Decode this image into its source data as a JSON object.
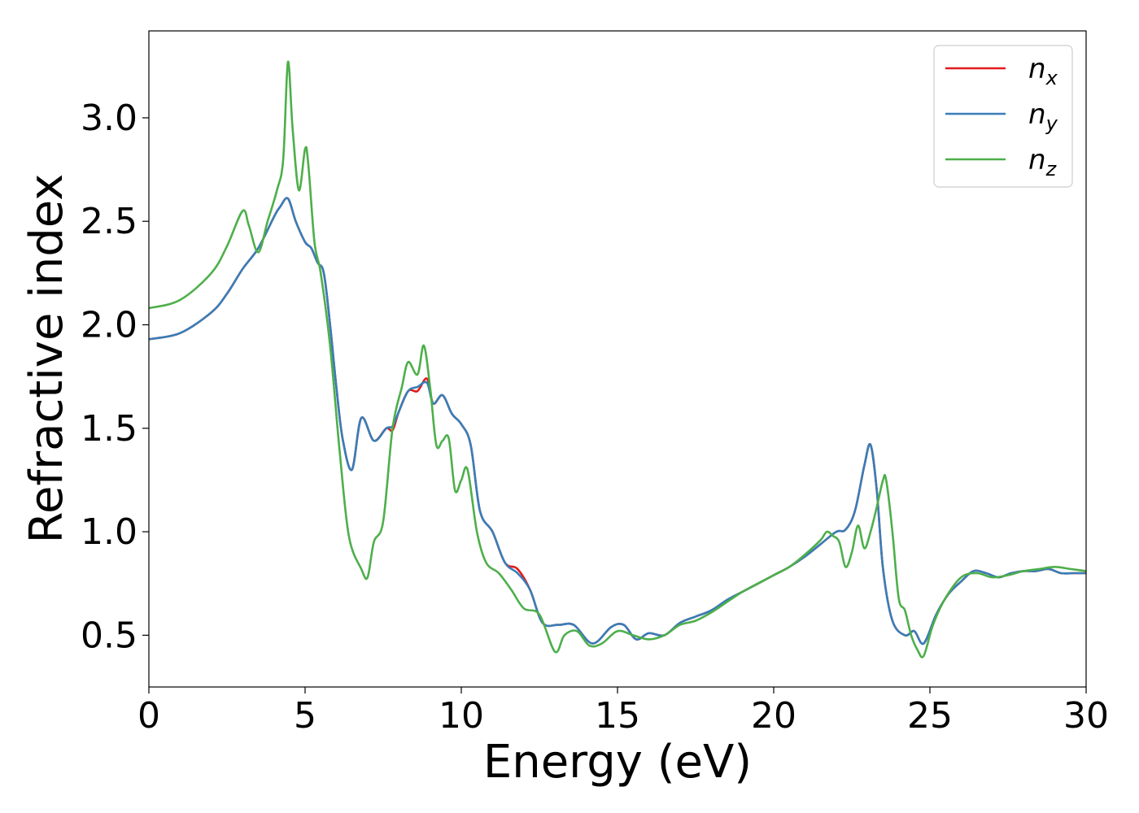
{
  "chart_data": {
    "type": "line",
    "xlabel": "Energy (eV)",
    "ylabel": "Refractive index",
    "xlim": [
      0,
      30
    ],
    "ylim": [
      0.25,
      3.42
    ],
    "xticks": [
      0,
      5,
      10,
      15,
      20,
      25,
      30
    ],
    "yticks": [
      0.5,
      1.0,
      1.5,
      2.0,
      2.5,
      3.0
    ],
    "xtick_labels": [
      "0",
      "5",
      "10",
      "15",
      "20",
      "25",
      "30"
    ],
    "ytick_labels": [
      "0.5",
      "1.0",
      "1.5",
      "2.0",
      "2.5",
      "3.0"
    ],
    "grid": false,
    "legend_position": "top-right",
    "series": [
      {
        "name": "n_x",
        "label_base": "n",
        "label_sub": "x",
        "color": "#e41a1c",
        "x": [
          0,
          1,
          2,
          2.5,
          3,
          3.5,
          4,
          4.2,
          4.45,
          4.7,
          5,
          5.2,
          5.4,
          5.6,
          5.8,
          6,
          6.2,
          6.5,
          6.8,
          7.2,
          7.6,
          7.8,
          8,
          8.3,
          8.6,
          8.9,
          9.1,
          9.4,
          9.7,
          10,
          10.3,
          10.6,
          11,
          11.4,
          11.8,
          12.2,
          12.6,
          13.1,
          13.6,
          14.2,
          14.8,
          15.2,
          15.6,
          16,
          16.5,
          17,
          17.5,
          18,
          18.5,
          19,
          19.5,
          20,
          20.5,
          21,
          21.5,
          22,
          22.3,
          22.6,
          22.9,
          23.1,
          23.3,
          23.5,
          23.8,
          24.2,
          24.5,
          24.8,
          25.2,
          25.6,
          26,
          26.4,
          26.8,
          27.2,
          27.6,
          28,
          28.4,
          28.8,
          29.2,
          29.6,
          30
        ],
        "y": [
          1.93,
          1.96,
          2.06,
          2.15,
          2.27,
          2.37,
          2.52,
          2.57,
          2.61,
          2.5,
          2.4,
          2.37,
          2.3,
          2.25,
          2.0,
          1.7,
          1.45,
          1.3,
          1.55,
          1.44,
          1.5,
          1.49,
          1.58,
          1.68,
          1.68,
          1.74,
          1.62,
          1.66,
          1.57,
          1.52,
          1.42,
          1.1,
          1.0,
          0.85,
          0.82,
          0.72,
          0.56,
          0.55,
          0.55,
          0.46,
          0.54,
          0.55,
          0.48,
          0.51,
          0.5,
          0.56,
          0.59,
          0.62,
          0.67,
          0.71,
          0.75,
          0.79,
          0.83,
          0.88,
          0.94,
          1.0,
          1.01,
          1.1,
          1.32,
          1.42,
          1.2,
          0.82,
          0.57,
          0.5,
          0.52,
          0.46,
          0.6,
          0.7,
          0.76,
          0.81,
          0.8,
          0.78,
          0.8,
          0.81,
          0.81,
          0.82,
          0.8,
          0.8,
          0.8
        ]
      },
      {
        "name": "n_y",
        "label_base": "n",
        "label_sub": "y",
        "color": "#377eb8",
        "x": [
          0,
          1,
          2,
          2.5,
          3,
          3.5,
          4,
          4.2,
          4.45,
          4.7,
          5,
          5.2,
          5.4,
          5.6,
          5.8,
          6,
          6.2,
          6.5,
          6.8,
          7.2,
          7.6,
          7.8,
          8,
          8.3,
          8.6,
          8.9,
          9.1,
          9.4,
          9.7,
          10,
          10.3,
          10.6,
          11,
          11.4,
          11.8,
          12.2,
          12.6,
          13.1,
          13.6,
          14.2,
          14.8,
          15.2,
          15.6,
          16,
          16.5,
          17,
          17.5,
          18,
          18.5,
          19,
          19.5,
          20,
          20.5,
          21,
          21.5,
          22,
          22.3,
          22.6,
          22.9,
          23.1,
          23.3,
          23.5,
          23.8,
          24.2,
          24.5,
          24.8,
          25.2,
          25.6,
          26,
          26.4,
          26.8,
          27.2,
          27.6,
          28,
          28.4,
          28.8,
          29.2,
          29.6,
          30
        ],
        "y": [
          1.93,
          1.96,
          2.06,
          2.15,
          2.27,
          2.37,
          2.52,
          2.57,
          2.61,
          2.5,
          2.4,
          2.37,
          2.3,
          2.25,
          2.0,
          1.7,
          1.45,
          1.3,
          1.55,
          1.44,
          1.5,
          1.51,
          1.58,
          1.68,
          1.7,
          1.72,
          1.62,
          1.66,
          1.57,
          1.52,
          1.42,
          1.1,
          1.0,
          0.85,
          0.8,
          0.72,
          0.56,
          0.55,
          0.55,
          0.46,
          0.54,
          0.55,
          0.48,
          0.51,
          0.5,
          0.56,
          0.59,
          0.62,
          0.67,
          0.71,
          0.75,
          0.79,
          0.83,
          0.88,
          0.94,
          1.0,
          1.01,
          1.1,
          1.32,
          1.42,
          1.2,
          0.82,
          0.57,
          0.5,
          0.52,
          0.46,
          0.6,
          0.7,
          0.76,
          0.81,
          0.8,
          0.78,
          0.8,
          0.81,
          0.81,
          0.82,
          0.8,
          0.8,
          0.8
        ]
      },
      {
        "name": "n_z",
        "label_base": "n",
        "label_sub": "z",
        "color": "#4daf4a",
        "x": [
          0,
          1,
          2,
          2.5,
          3,
          3.2,
          3.5,
          3.8,
          4.1,
          4.3,
          4.45,
          4.6,
          4.8,
          5.0,
          5.1,
          5.3,
          5.5,
          5.8,
          6.1,
          6.4,
          6.8,
          7.0,
          7.2,
          7.5,
          7.8,
          8.1,
          8.3,
          8.6,
          8.8,
          9.0,
          9.2,
          9.4,
          9.6,
          9.8,
          10.0,
          10.2,
          10.5,
          10.8,
          11.2,
          11.6,
          12.0,
          12.5,
          13.0,
          13.3,
          13.7,
          14.1,
          14.5,
          15.0,
          15.5,
          16.0,
          16.5,
          17.0,
          17.5,
          18.0,
          18.5,
          19.0,
          19.5,
          20.0,
          20.5,
          21.0,
          21.5,
          21.7,
          21.9,
          22.1,
          22.3,
          22.5,
          22.7,
          22.9,
          23.1,
          23.3,
          23.5,
          23.6,
          23.8,
          24.0,
          24.2,
          24.4,
          24.6,
          24.8,
          25.1,
          25.5,
          26.0,
          26.5,
          27.0,
          27.5,
          28.0,
          28.5,
          29.0,
          29.5,
          30
        ],
        "y": [
          2.08,
          2.12,
          2.25,
          2.38,
          2.55,
          2.48,
          2.35,
          2.5,
          2.65,
          2.8,
          3.27,
          2.95,
          2.65,
          2.85,
          2.78,
          2.4,
          2.25,
          1.9,
          1.4,
          0.98,
          0.82,
          0.78,
          0.95,
          1.05,
          1.5,
          1.7,
          1.82,
          1.76,
          1.9,
          1.7,
          1.42,
          1.44,
          1.45,
          1.2,
          1.25,
          1.3,
          1.0,
          0.85,
          0.8,
          0.72,
          0.63,
          0.6,
          0.42,
          0.5,
          0.52,
          0.45,
          0.46,
          0.52,
          0.5,
          0.48,
          0.5,
          0.55,
          0.57,
          0.61,
          0.66,
          0.71,
          0.75,
          0.79,
          0.83,
          0.89,
          0.96,
          1.0,
          0.98,
          0.95,
          0.83,
          0.9,
          1.03,
          0.92,
          1.0,
          1.12,
          1.25,
          1.25,
          1.0,
          0.68,
          0.62,
          0.5,
          0.43,
          0.4,
          0.55,
          0.68,
          0.78,
          0.8,
          0.78,
          0.79,
          0.81,
          0.82,
          0.83,
          0.82,
          0.81
        ]
      }
    ]
  }
}
